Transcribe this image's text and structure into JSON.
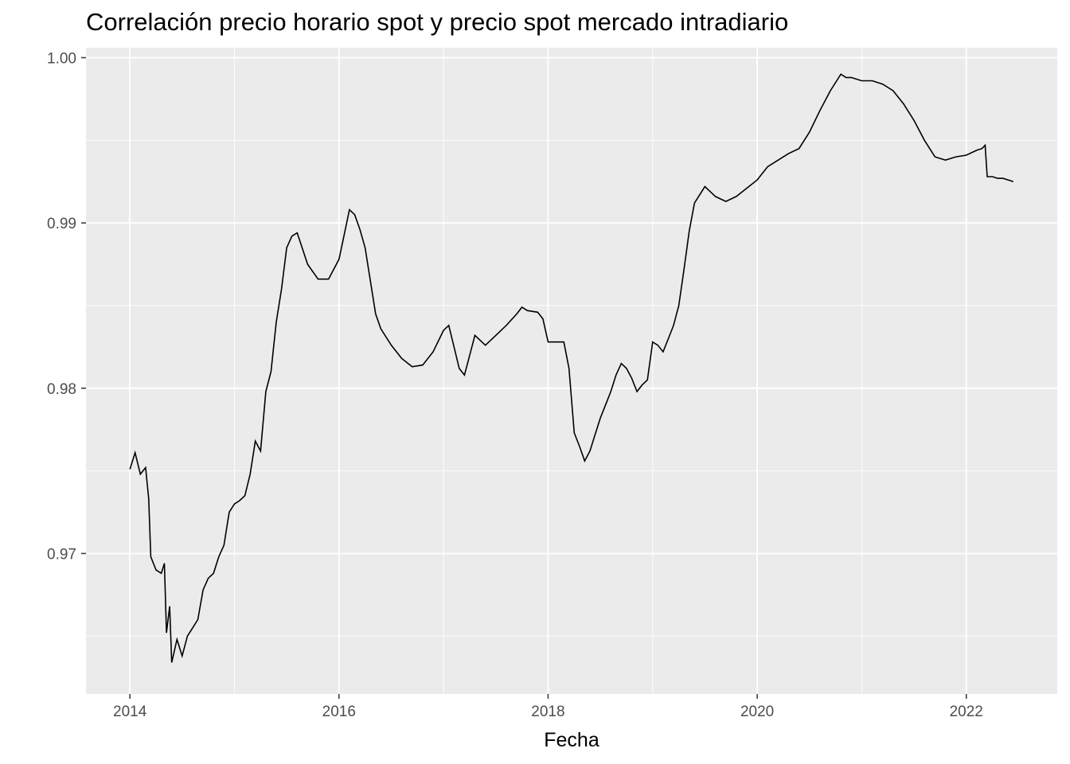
{
  "title": "Correlación precio horario spot y precio spot mercado intradiario",
  "chart_data": {
    "type": "line",
    "title": "Correlación precio horario spot y precio spot mercado intradiario",
    "xlabel": "Fecha",
    "ylabel": "",
    "x_ticks": [
      "2014",
      "2016",
      "2018",
      "2020",
      "2022"
    ],
    "x_tick_values": [
      2014,
      2016,
      2018,
      2020,
      2022
    ],
    "y_ticks": [
      "0.97",
      "0.98",
      "0.99",
      "1.00"
    ],
    "y_tick_values": [
      0.97,
      0.98,
      0.99,
      1.0
    ],
    "xlim": [
      2013.58,
      2022.87
    ],
    "ylim": [
      0.9615,
      1.0006
    ],
    "grid": true,
    "background": "#ebebeb",
    "grid_color": "#ffffff",
    "line_color": "#000000",
    "series": [
      {
        "x": [
          2014.0,
          2014.05,
          2014.1,
          2014.15,
          2014.18,
          2014.2,
          2014.25,
          2014.3,
          2014.33,
          2014.35,
          2014.38,
          2014.4,
          2014.45,
          2014.5,
          2014.55,
          2014.6,
          2014.65,
          2014.7,
          2014.75,
          2014.8,
          2014.85,
          2014.9,
          2014.95,
          2015.0,
          2015.05,
          2015.1,
          2015.15,
          2015.2,
          2015.25,
          2015.3,
          2015.35,
          2015.4,
          2015.45,
          2015.5,
          2015.55,
          2015.6,
          2015.7,
          2015.8,
          2015.9,
          2016.0,
          2016.05,
          2016.1,
          2016.15,
          2016.2,
          2016.25,
          2016.3,
          2016.35,
          2016.4,
          2016.5,
          2016.6,
          2016.7,
          2016.8,
          2016.9,
          2017.0,
          2017.05,
          2017.1,
          2017.15,
          2017.2,
          2017.25,
          2017.3,
          2017.4,
          2017.5,
          2017.6,
          2017.7,
          2017.75,
          2017.8,
          2017.9,
          2017.95,
          2018.0,
          2018.1,
          2018.15,
          2018.2,
          2018.25,
          2018.3,
          2018.35,
          2018.4,
          2018.45,
          2018.5,
          2018.55,
          2018.6,
          2018.65,
          2018.7,
          2018.75,
          2018.8,
          2018.85,
          2018.9,
          2018.95,
          2019.0,
          2019.05,
          2019.1,
          2019.15,
          2019.2,
          2019.25,
          2019.3,
          2019.35,
          2019.4,
          2019.5,
          2019.6,
          2019.7,
          2019.8,
          2019.9,
          2020.0,
          2020.1,
          2020.2,
          2020.3,
          2020.4,
          2020.5,
          2020.6,
          2020.7,
          2020.8,
          2020.85,
          2020.9,
          2021.0,
          2021.1,
          2021.2,
          2021.3,
          2021.4,
          2021.5,
          2021.6,
          2021.7,
          2021.8,
          2021.9,
          2022.0,
          2022.1,
          2022.15,
          2022.18,
          2022.2,
          2022.25,
          2022.3,
          2022.35,
          2022.4,
          2022.45
        ],
        "values": [
          0.9751,
          0.9761,
          0.9748,
          0.9752,
          0.9733,
          0.9698,
          0.969,
          0.9688,
          0.9694,
          0.9652,
          0.9668,
          0.9634,
          0.9648,
          0.9638,
          0.965,
          0.9655,
          0.966,
          0.9678,
          0.9685,
          0.9688,
          0.9698,
          0.9705,
          0.9725,
          0.973,
          0.9732,
          0.9735,
          0.9748,
          0.9768,
          0.9762,
          0.9798,
          0.981,
          0.984,
          0.986,
          0.9885,
          0.9892,
          0.9894,
          0.9875,
          0.9866,
          0.9866,
          0.9878,
          0.9893,
          0.9908,
          0.9905,
          0.9896,
          0.9885,
          0.9865,
          0.9845,
          0.9836,
          0.9826,
          0.9818,
          0.9813,
          0.9814,
          0.9822,
          0.9835,
          0.9838,
          0.9825,
          0.9812,
          0.9808,
          0.982,
          0.9832,
          0.9826,
          0.9832,
          0.9838,
          0.9845,
          0.9849,
          0.9847,
          0.9846,
          0.9842,
          0.9828,
          0.9828,
          0.9828,
          0.9812,
          0.9773,
          0.9765,
          0.9756,
          0.9762,
          0.9772,
          0.9782,
          0.979,
          0.9798,
          0.9808,
          0.9815,
          0.9812,
          0.9806,
          0.9798,
          0.9802,
          0.9805,
          0.9828,
          0.9826,
          0.9822,
          0.983,
          0.9838,
          0.985,
          0.9872,
          0.9895,
          0.9912,
          0.9922,
          0.9916,
          0.9913,
          0.9916,
          0.9921,
          0.9926,
          0.9934,
          0.9938,
          0.9942,
          0.9945,
          0.9955,
          0.9968,
          0.998,
          0.999,
          0.9988,
          0.9988,
          0.9986,
          0.9986,
          0.9984,
          0.998,
          0.9972,
          0.9962,
          0.995,
          0.994,
          0.9938,
          0.994,
          0.9941,
          0.9944,
          0.9945,
          0.9947,
          0.9928,
          0.9928,
          0.9927,
          0.9927,
          0.9926,
          0.9925
        ]
      }
    ]
  }
}
